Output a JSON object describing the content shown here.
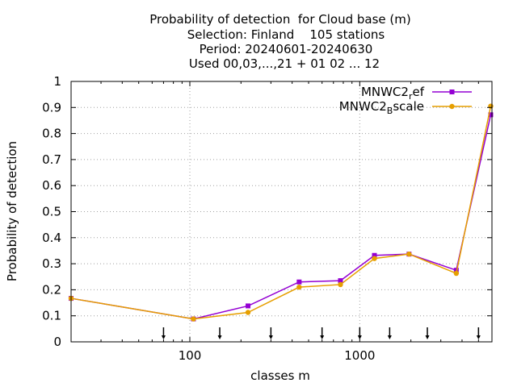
{
  "chart_data": {
    "type": "line",
    "title": [
      "Probability of detection  for Cloud base (m)",
      "Selection: Finland    105 stations",
      "Period: 20240601-20240630",
      "Used 00,03,...,21 + 01 02 ... 12"
    ],
    "xlabel": "classes m",
    "ylabel": "Probability of detection",
    "xscale": "log",
    "xlim": [
      20,
      6000
    ],
    "ylim": [
      0,
      1
    ],
    "x_tick_values": [
      100,
      1000
    ],
    "x_tick_labels": [
      "100",
      "1000"
    ],
    "y_tick_values": [
      0,
      0.1,
      0.2,
      0.3,
      0.4,
      0.5,
      0.6,
      0.7,
      0.8,
      0.9,
      1
    ],
    "y_tick_labels": [
      "0",
      "0.1",
      "0.2",
      "0.3",
      "0.4",
      "0.5",
      "0.6",
      "0.7",
      "0.8",
      "0.9",
      "1"
    ],
    "grid": true,
    "legend_position": "top-right",
    "class_boundary_markers": [
      70,
      150,
      300,
      600,
      1000,
      1500,
      2500,
      5000
    ],
    "series": [
      {
        "name": "MNWC2_ref",
        "name_base": "MNWC2",
        "name_sub": "r",
        "name_rest": "ef",
        "color": "#9400d3",
        "marker": "square",
        "x": [
          20,
          105,
          220,
          440,
          770,
          1220,
          1950,
          3700,
          5900
        ],
        "y": [
          0.167,
          0.088,
          0.138,
          0.23,
          0.235,
          0.332,
          0.337,
          0.275,
          0.872
        ]
      },
      {
        "name": "MNWC2_Bscale",
        "name_base": "MNWC2",
        "name_sub": "B",
        "name_rest": "scale",
        "color": "#e69f00",
        "marker": "circle",
        "x": [
          20,
          105,
          220,
          440,
          770,
          1220,
          1950,
          3700,
          5900
        ],
        "y": [
          0.167,
          0.088,
          0.113,
          0.21,
          0.22,
          0.32,
          0.337,
          0.263,
          0.905
        ]
      }
    ]
  }
}
